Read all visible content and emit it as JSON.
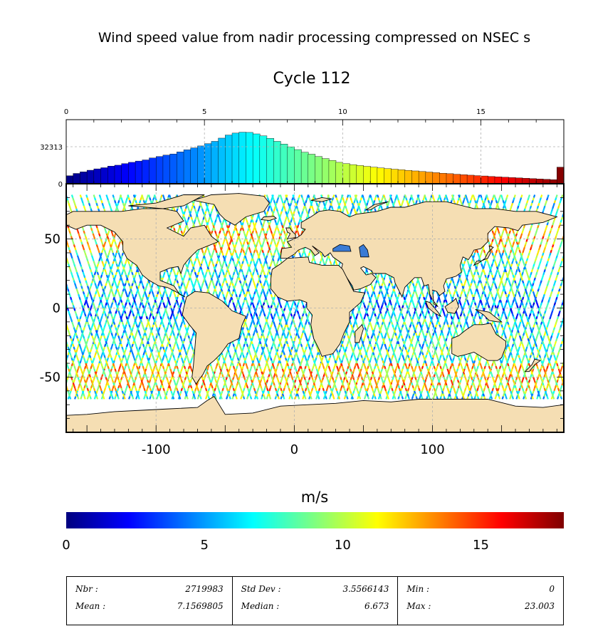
{
  "title": "Wind speed value from nadir processing compressed on NSEC s",
  "subtitle": "Cycle 112",
  "unit_label": "m/s",
  "colors": {
    "land": "#f5deb3",
    "jet": [
      "#00007f",
      "#0000ff",
      "#007fff",
      "#00ffff",
      "#7fff7f",
      "#ffff00",
      "#ff7f00",
      "#ff0000",
      "#7f0000"
    ]
  },
  "chart_data": [
    {
      "type": "bar",
      "name": "histogram",
      "xlim": [
        0,
        18
      ],
      "x_ticks": [
        0,
        5,
        10,
        15
      ],
      "y_ticks": [
        0,
        32313
      ],
      "bin_width": 0.25,
      "bin_centers": [
        0.125,
        0.375,
        0.625,
        0.875,
        1.125,
        1.375,
        1.625,
        1.875,
        2.125,
        2.375,
        2.625,
        2.875,
        3.125,
        3.375,
        3.625,
        3.875,
        4.125,
        4.375,
        4.625,
        4.875,
        5.125,
        5.375,
        5.625,
        5.875,
        6.125,
        6.375,
        6.625,
        6.875,
        7.125,
        7.375,
        7.625,
        7.875,
        8.125,
        8.375,
        8.625,
        8.875,
        9.125,
        9.375,
        9.625,
        9.875,
        10.125,
        10.375,
        10.625,
        10.875,
        11.125,
        11.375,
        11.625,
        11.875,
        12.125,
        12.375,
        12.625,
        12.875,
        13.125,
        13.375,
        13.625,
        13.875,
        14.125,
        14.375,
        14.625,
        14.875,
        15.125,
        15.375,
        15.625,
        15.875,
        16.125,
        16.375,
        16.625,
        16.875,
        17.125,
        17.375,
        17.625,
        17.875
      ],
      "values": [
        7000,
        9000,
        10400,
        11800,
        13000,
        14000,
        15400,
        16200,
        17600,
        18700,
        19800,
        20800,
        22500,
        23800,
        25000,
        26000,
        27800,
        29600,
        31300,
        33000,
        35000,
        37000,
        39800,
        42500,
        44200,
        45000,
        44800,
        43500,
        41800,
        39600,
        37000,
        34600,
        32200,
        29800,
        27500,
        25800,
        23800,
        22000,
        20400,
        18700,
        17600,
        16700,
        15900,
        15200,
        14500,
        13800,
        13200,
        12700,
        12200,
        11700,
        11200,
        10700,
        10200,
        9700,
        9200,
        8800,
        8300,
        7900,
        7500,
        7100,
        6800,
        6400,
        6000,
        5700,
        5400,
        5100,
        4800,
        4500,
        4200,
        3900,
        3600,
        14500
      ]
    },
    {
      "type": "heatmap",
      "name": "map",
      "xlim": [
        -165,
        195
      ],
      "ylim": [
        -90,
        90
      ],
      "x_ticks": [
        -100,
        0,
        100
      ],
      "y_ticks": [
        -50,
        0,
        50
      ]
    },
    {
      "type": "heatmap",
      "name": "colorbar",
      "range": [
        0,
        18
      ],
      "ticks": [
        0,
        5,
        10,
        15
      ]
    }
  ],
  "stats": [
    {
      "label1": "Nbr :",
      "value1": "2719983",
      "label2": "Mean :",
      "value2": "7.1569805"
    },
    {
      "label1": "Std Dev :",
      "value1": "3.5566143",
      "label2": "Median :",
      "value2": "6.673"
    },
    {
      "label1": "Min :",
      "value1": "0",
      "label2": "Max :",
      "value2": "23.003"
    }
  ]
}
